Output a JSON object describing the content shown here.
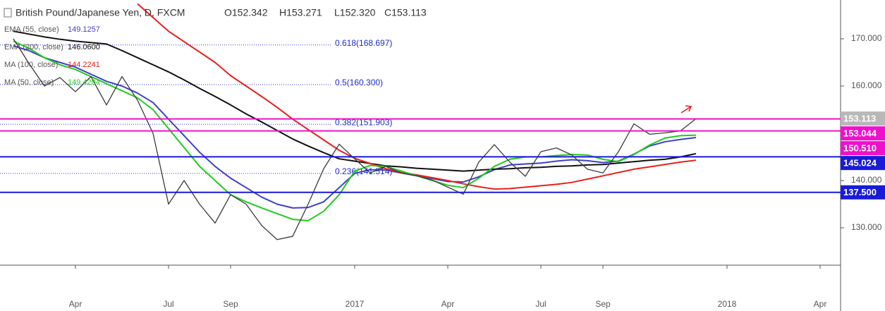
{
  "chart_data": {
    "type": "line",
    "title": "British Pound/Japanese Yen, D, FXCM",
    "ohlc": [
      "O152.342",
      "H153.271",
      "L152.320",
      "C153.113"
    ],
    "categories": [
      null,
      null,
      null,
      null,
      "Apr",
      null,
      null,
      null,
      null,
      null,
      "Jul",
      null,
      null,
      null,
      "Sep",
      null,
      null,
      null,
      null,
      null,
      null,
      null,
      "2017",
      null,
      null,
      null,
      null,
      null,
      "Apr",
      null,
      null,
      null,
      null,
      null,
      "Jul",
      null,
      null,
      null,
      "Sep",
      null,
      null,
      null,
      null,
      null,
      null,
      null,
      "2018",
      null,
      null,
      null,
      null,
      null,
      "Apr"
    ],
    "price": {
      "color": "#3a3a3a",
      "values": [
        170,
        164.8,
        160,
        161.8,
        158.8,
        162,
        156,
        162,
        157,
        150,
        135,
        140,
        135,
        131,
        137,
        135,
        130.5,
        127.5,
        128.2,
        135,
        142.5,
        147.7,
        144.6,
        141.6,
        143,
        141.6,
        141,
        140.1,
        138.6,
        137.1,
        143.9,
        147.6,
        143.9,
        140.9,
        146.1,
        146.9,
        145.4,
        142.4,
        141.6,
        146.1,
        152,
        149.8,
        150.1,
        150.5,
        153.1,
        null,
        null,
        null,
        null,
        null,
        null,
        null,
        null
      ]
    },
    "series": [
      {
        "name": "EMA (55, close)",
        "legend_value": "149.1257",
        "color": "#3f3fc9",
        "values": [
          168.5,
          167.5,
          166,
          165,
          164,
          162.5,
          161,
          160,
          158.5,
          156.5,
          153,
          149.5,
          146,
          143,
          140.5,
          138.5,
          136.5,
          135,
          134.2,
          134.3,
          135.5,
          138.5,
          141.5,
          142.3,
          142.2,
          141.6,
          141,
          140.4,
          139.8,
          139.7,
          140.8,
          142.3,
          143.3,
          143.5,
          143.7,
          144.1,
          144.4,
          144.2,
          143.8,
          144.1,
          145.6,
          147.3,
          148.2,
          148.7,
          149.1,
          null,
          null,
          null,
          null,
          null,
          null,
          null,
          null
        ]
      },
      {
        "name": "EMA (200, close)",
        "legend_value": "146.0600",
        "color": "#111111",
        "values": [
          171.6,
          171,
          170.4,
          169.9,
          169.5,
          169.2,
          168.9,
          167.5,
          166,
          164.5,
          163,
          161.3,
          159.5,
          157.8,
          156,
          154.1,
          152.4,
          150.6,
          148.8,
          147.3,
          145.9,
          144.6,
          144.1,
          143.6,
          143.1,
          142.9,
          142.6,
          142.4,
          142.2,
          142,
          142.2,
          142.4,
          142.5,
          142.7,
          142.8,
          143,
          143.1,
          143.3,
          143.4,
          143.7,
          144,
          144.3,
          144.5,
          145,
          145.7,
          null,
          null,
          null,
          null,
          null,
          null,
          null,
          null
        ]
      },
      {
        "name": "MA (100, close)",
        "legend_value": "144.2241",
        "color": "#e8201c",
        "values": [
          null,
          null,
          null,
          null,
          null,
          null,
          null,
          null,
          177.4,
          174.5,
          171.6,
          169.4,
          167.2,
          165,
          162.2,
          160,
          157.8,
          155.5,
          153,
          150.8,
          148.6,
          146.4,
          144.7,
          143.6,
          142.5,
          141.7,
          141.2,
          140.6,
          140,
          139.3,
          138.7,
          138.2,
          138.3,
          138.6,
          138.9,
          139.2,
          139.6,
          140.3,
          141,
          141.7,
          142.4,
          142.9,
          143.4,
          143.9,
          144.3,
          null,
          null,
          null,
          null,
          null,
          null,
          null,
          null
        ]
      },
      {
        "name": "MA (50, close)",
        "legend_value": "149.4204",
        "color": "#22c91f",
        "values": [
          169.5,
          168,
          166,
          164.5,
          163.5,
          162,
          160.5,
          159,
          157.5,
          155,
          151,
          147,
          143,
          140,
          137,
          135.5,
          134.2,
          133,
          131.8,
          131.5,
          133.5,
          137,
          142,
          143.2,
          143,
          142,
          141,
          140,
          139,
          138.5,
          140.5,
          143,
          144.5,
          145,
          145,
          145.3,
          145.5,
          145.4,
          144.5,
          144,
          145.5,
          147.5,
          149,
          149.5,
          149.6,
          null,
          null,
          null,
          null,
          null,
          null,
          null,
          null
        ]
      }
    ],
    "ylim": [
      122.09,
      178.21
    ],
    "yticks": [
      {
        "value": 130,
        "label": "130.000"
      },
      {
        "value": 140,
        "label": "140.000"
      },
      {
        "value": 160,
        "label": "160.000"
      },
      {
        "value": 170,
        "label": "170.000"
      }
    ],
    "levels": [
      {
        "value": 153.044,
        "label": "153.044",
        "color": "#ee11cc"
      },
      {
        "value": 150.51,
        "label": "150.510",
        "color": "#ee11cc"
      },
      {
        "value": 145.024,
        "label": "145.024",
        "color": "#1a1ad8"
      },
      {
        "value": 137.5,
        "label": "137.500",
        "color": "#1a1ad8"
      }
    ],
    "last_price": {
      "value": 153.113,
      "label": "153.113",
      "color": "#b8b8b8"
    },
    "fib": [
      {
        "value": 168.697,
        "label": "0.618(168.697)"
      },
      {
        "value": 160.3,
        "label": "0.5(160.300)"
      },
      {
        "value": 151.903,
        "label": "0.382(151.903)"
      },
      {
        "value": 141.514,
        "label": "0.236(141.514)"
      }
    ]
  }
}
